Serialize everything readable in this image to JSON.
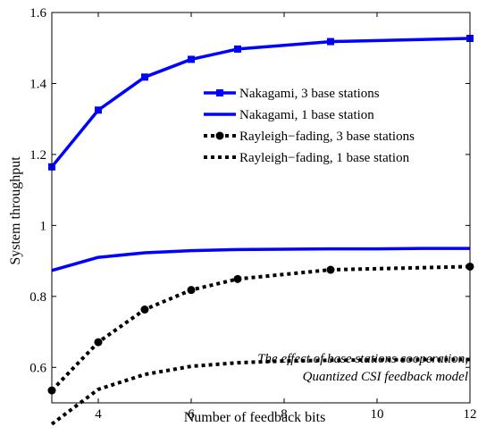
{
  "chart_data": {
    "type": "line",
    "xlabel": "Number of feedback bits",
    "ylabel": "System throughput",
    "xlim": [
      3,
      12
    ],
    "ylim": [
      0.5,
      1.6
    ],
    "xticks": [
      4,
      6,
      8,
      10,
      12
    ],
    "yticks": [
      0.6,
      0.8,
      1,
      1.2,
      1.4,
      1.6
    ],
    "x_tick_labels": [
      "4",
      "6",
      "8",
      "10",
      "12"
    ],
    "y_tick_labels": [
      "0.6",
      "0.8",
      "1",
      "1.2",
      "1.4",
      "1.6"
    ],
    "grid": false,
    "legend_position": "top-right",
    "series": [
      {
        "name": "Nakagami, 3 base stations",
        "x": [
          3,
          4,
          5,
          6,
          7,
          9,
          12
        ],
        "y": [
          1.165,
          1.325,
          1.418,
          1.468,
          1.497,
          1.518,
          1.527
        ],
        "color": "#0000ff",
        "line": "solid",
        "marker": "square"
      },
      {
        "name": "Nakagami, 1 base station",
        "x": [
          3,
          4,
          5,
          6,
          7,
          8,
          9,
          10,
          11,
          12
        ],
        "y": [
          0.873,
          0.91,
          0.923,
          0.929,
          0.932,
          0.933,
          0.934,
          0.934,
          0.935,
          0.935
        ],
        "color": "#0000ff",
        "line": "solid",
        "marker": "none"
      },
      {
        "name": "Rayleigh−fading, 3 base stations",
        "x": [
          3,
          4,
          5,
          6,
          7,
          9,
          12
        ],
        "y": [
          0.535,
          0.671,
          0.763,
          0.818,
          0.849,
          0.875,
          0.884
        ],
        "color": "#000000",
        "line": "dotted",
        "marker": "circle"
      },
      {
        "name": "Rayleigh−fading, 1 base station",
        "x": [
          3,
          4,
          5,
          6,
          7,
          8,
          9,
          10,
          11,
          12
        ],
        "y": [
          0.44,
          0.538,
          0.58,
          0.603,
          0.613,
          0.618,
          0.62,
          0.621,
          0.622,
          0.622
        ],
        "color": "#000000",
        "line": "dotted",
        "marker": "none"
      }
    ],
    "annotation_lines": [
      "The effect of base stations cooperation,",
      "Quantized CSI feedback model"
    ]
  }
}
